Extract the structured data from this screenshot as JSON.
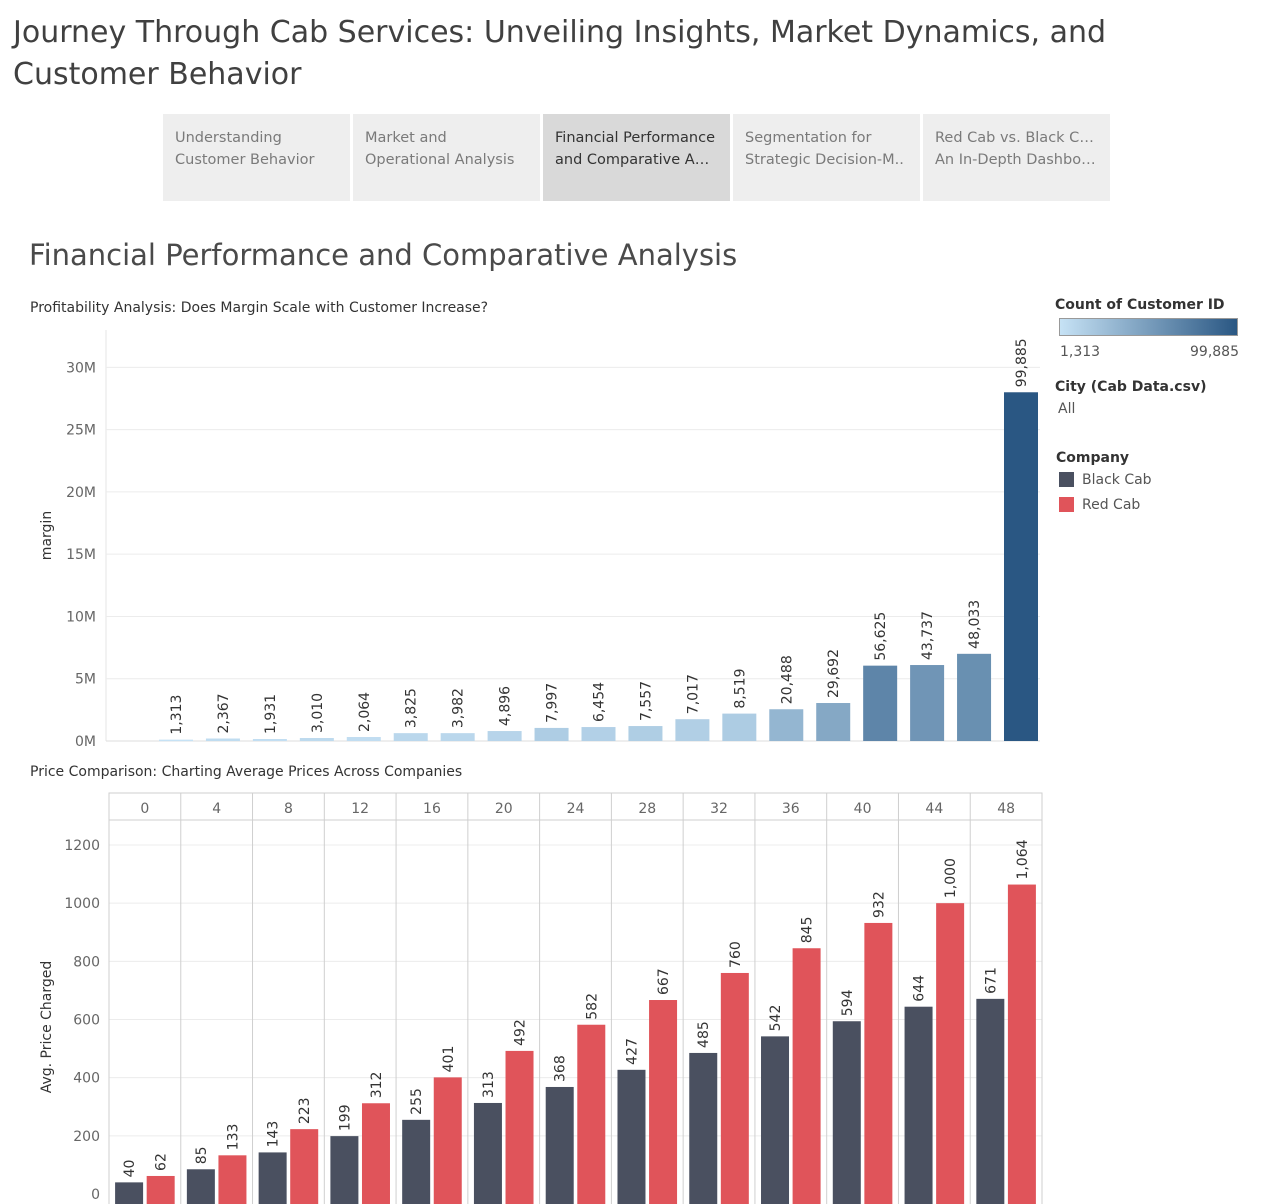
{
  "story": {
    "title": "Journey Through Cab Services: Unveiling Insights, Market Dynamics, and Customer Behavior",
    "tabs": [
      {
        "line1": "Understanding",
        "line2": "Customer Behavior"
      },
      {
        "line1": "Market and",
        "line2": "Operational Analysis"
      },
      {
        "line1": "Financial Performance",
        "line2": "and Comparative Ana.."
      },
      {
        "line1": "Segmentation for",
        "line2": "Strategic Decision-M.."
      },
      {
        "line1": "Red Cab vs. Black Cab:",
        "line2": "An In-Depth Dashboa.."
      }
    ],
    "active_tab": 2
  },
  "dashboard": {
    "title": "Financial Performance and Comparative Analysis"
  },
  "legend": {
    "color_title": "Count of Customer ID",
    "color_min": "1,313",
    "color_max": "99,885",
    "color_low": "#c6e2f5",
    "color_high": "#2a5783",
    "city_title": "City (Cab Data.csv)",
    "city_value": "All",
    "company_title": "Company",
    "companies": [
      {
        "name": "Black Cab",
        "color": "#4a5060"
      },
      {
        "name": "Red Cab",
        "color": "#e0545a"
      }
    ]
  },
  "chart_data": [
    {
      "type": "bar",
      "title": "Profitability Analysis: Does Margin Scale with Customer Increase?",
      "ylabel": "margin",
      "ylim": [
        0,
        33000000
      ],
      "yticks": [
        0,
        5000000,
        10000000,
        15000000,
        20000000,
        25000000,
        30000000
      ],
      "ytick_labels": [
        "0M",
        "5M",
        "10M",
        "15M",
        "20M",
        "25M",
        "30M"
      ],
      "values": [
        110000,
        200000,
        160000,
        240000,
        320000,
        630000,
        630000,
        800000,
        1050000,
        1120000,
        1200000,
        1750000,
        2200000,
        2550000,
        3050000,
        6050000,
        6100000,
        7000000,
        28000000
      ],
      "labels": [
        "1,313",
        "2,367",
        "1,931",
        "3,010",
        "2,064",
        "3,825",
        "3,982",
        "4,896",
        "7,997",
        "6,454",
        "7,557",
        "7,017",
        "8,519",
        "20,488",
        "29,692",
        "56,625",
        "43,737",
        "48,033",
        "99,885"
      ],
      "counts": [
        1313,
        2367,
        1931,
        3010,
        2064,
        3825,
        3982,
        4896,
        7997,
        6454,
        7557,
        7017,
        8519,
        20488,
        29692,
        56625,
        43737,
        48033,
        99885
      ]
    },
    {
      "type": "bar",
      "title": "Price Comparison: Charting Average Prices Across Companies",
      "ylabel": "Avg. Price Charged",
      "ylim": [
        0,
        1300
      ],
      "yticks": [
        0,
        200,
        400,
        600,
        800,
        1000,
        1200
      ],
      "categories": [
        "0",
        "4",
        "8",
        "12",
        "16",
        "20",
        "24",
        "28",
        "32",
        "36",
        "40",
        "44",
        "48"
      ],
      "series": [
        {
          "name": "Black Cab",
          "values": [
            40,
            85,
            143,
            199,
            255,
            313,
            368,
            427,
            485,
            542,
            594,
            644,
            671
          ]
        },
        {
          "name": "Red Cab",
          "values": [
            62,
            133,
            223,
            312,
            401,
            492,
            582,
            667,
            760,
            845,
            932,
            1000,
            1064
          ]
        }
      ],
      "black_labels": [
        "40",
        "85",
        "143",
        "199",
        "255",
        "313",
        "368",
        "427",
        "485",
        "542",
        "594",
        "644",
        "671"
      ],
      "red_labels": [
        "62",
        "133",
        "223",
        "312",
        "401",
        "492",
        "582",
        "667",
        "760",
        "845",
        "932",
        "1,000",
        "1,064"
      ]
    }
  ]
}
